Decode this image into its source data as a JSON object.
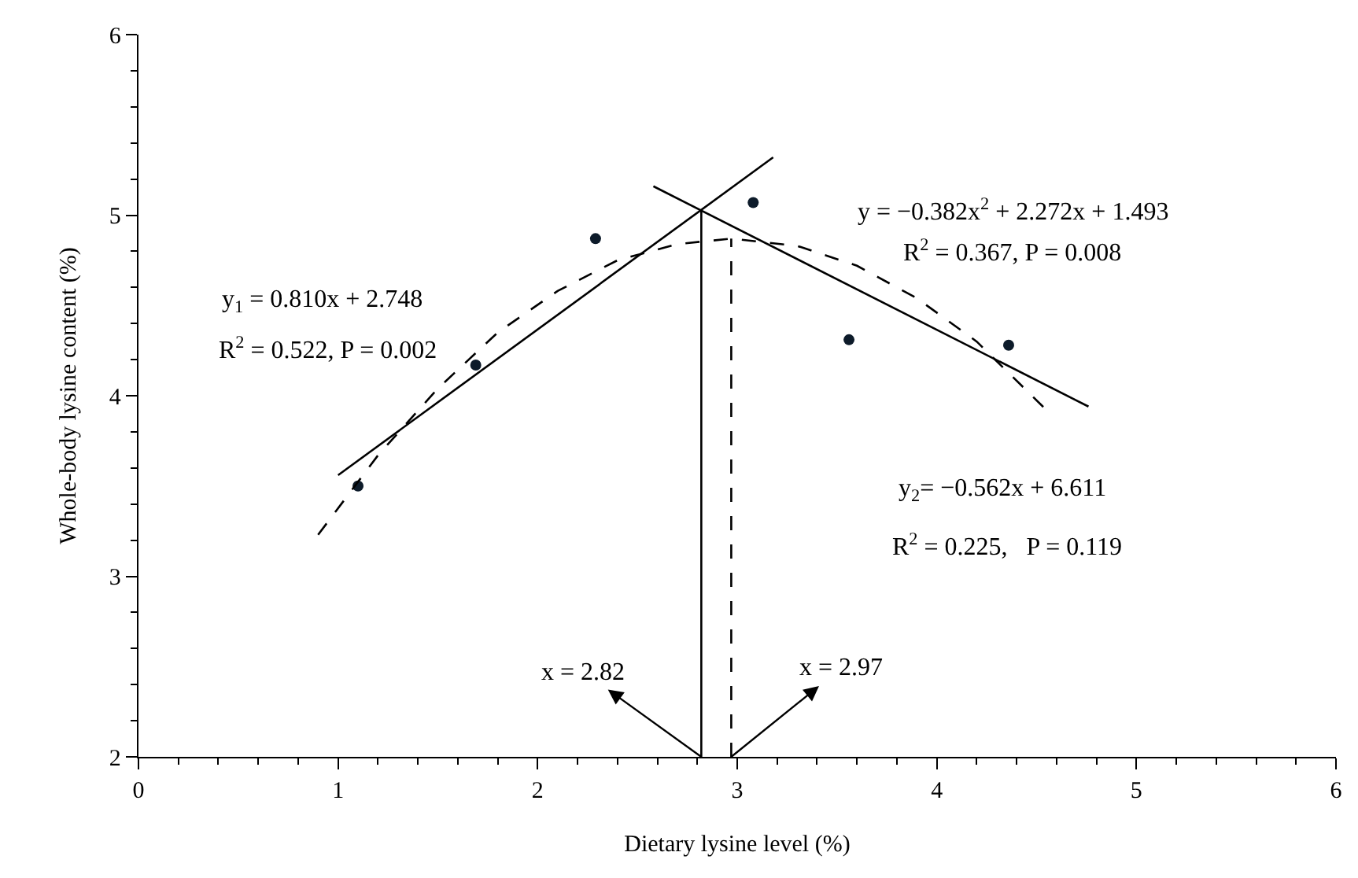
{
  "chart_data": {
    "type": "scatter",
    "xlabel": "Dietary lysine level (%)",
    "ylabel": "Whole-body lysine content (%)",
    "xlim": [
      0,
      6
    ],
    "xticks": [
      0,
      1,
      2,
      3,
      4,
      5,
      6
    ],
    "ylim": [
      2,
      6
    ],
    "yticks": [
      2,
      3,
      4,
      5,
      6
    ],
    "grid": false,
    "series": [
      {
        "marker": "circle",
        "color": "#0d1b2a",
        "x": [
          1.1,
          1.69,
          2.29,
          3.08,
          3.56,
          4.36
        ],
        "values": [
          3.5,
          4.17,
          4.87,
          5.07,
          4.31,
          4.28
        ]
      },
      {
        "type": "line",
        "color": "#000000",
        "line_style": "solid",
        "x": [
          1.0,
          3.18
        ],
        "values": [
          3.56,
          5.32
        ]
      },
      {
        "type": "line",
        "color": "#000000",
        "line_style": "solid",
        "x": [
          2.58,
          4.76
        ],
        "values": [
          5.16,
          3.94
        ]
      },
      {
        "type": "line",
        "color": "#000000",
        "line_style": "dashed",
        "x": [
          0.9,
          1.2,
          1.5,
          1.8,
          2.1,
          2.4,
          2.7,
          2.97,
          3.3,
          3.6,
          3.9,
          4.2,
          4.55
        ],
        "values": [
          3.23,
          3.67,
          4.04,
          4.35,
          4.58,
          4.75,
          4.84,
          4.87,
          4.83,
          4.72,
          4.54,
          4.3,
          3.92
        ]
      },
      {
        "type": "line",
        "color": "#000000",
        "line_style": "solid",
        "x": [
          2.82,
          2.82
        ],
        "values": [
          2,
          5.03
        ]
      },
      {
        "type": "line",
        "color": "#000000",
        "line_style": "dashed",
        "x": [
          2.97,
          2.97
        ],
        "values": [
          2,
          4.87
        ]
      }
    ],
    "annotations": [
      "y$_{1}$ = 0.810x + 2.748",
      "R$^{2}$ = 0.522, P = 0.002",
      "y = −0.382x$^{2}$ + 2.272x + 1.493",
      "R$^{2}$ = 0.367, P = 0.008",
      "y$_{2}$= −0.562x + 6.611",
      "R$^{2}$ = 0.225,   P = 0.119",
      {
        "text": "x = 2.82",
        "x": 2.82,
        "y": 2
      },
      {
        "text": "x = 2.97",
        "x": 2.97,
        "y": 2
      }
    ]
  }
}
